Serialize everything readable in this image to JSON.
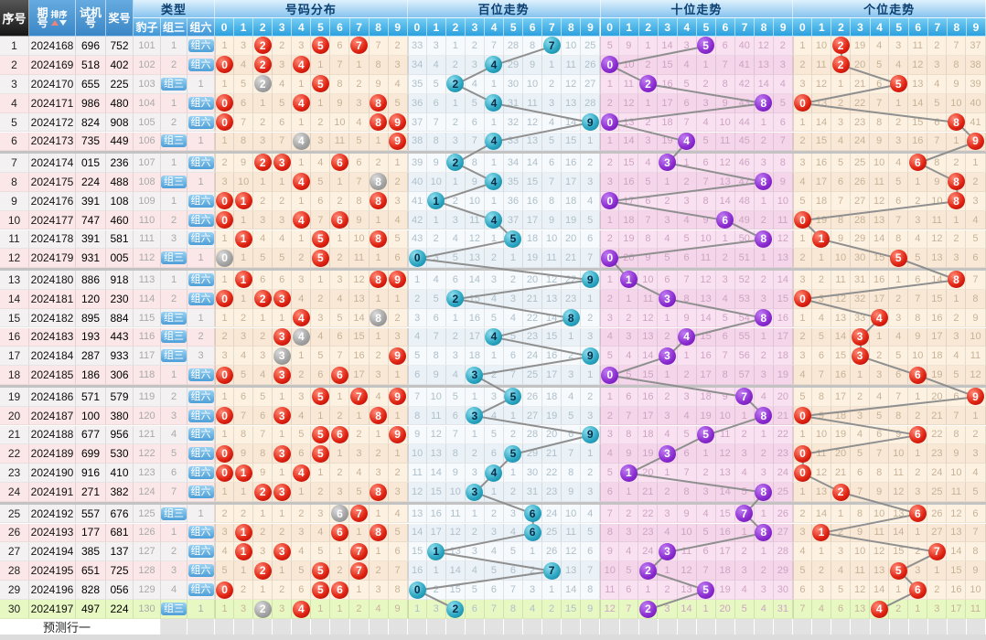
{
  "header": {
    "seq": "序号",
    "period": "期号",
    "sort_label": "排序",
    "test": "试机号",
    "prize": "奖号",
    "type_title": "类型",
    "type_cols": [
      "豹子",
      "组三",
      "组六"
    ],
    "section_titles": [
      "号码分布",
      "百位走势",
      "十位走势",
      "个位走势"
    ],
    "digit_headers": [
      "0",
      "1",
      "2",
      "3",
      "4",
      "5",
      "6",
      "7",
      "8",
      "9"
    ]
  },
  "type_labels": {
    "zu3": "组三",
    "zu6": "组六"
  },
  "seeds": {
    "distribution": [
      1,
      3,
      0,
      2,
      3,
      0,
      6,
      0,
      7,
      2
    ],
    "hundreds": [
      33,
      3,
      1,
      2,
      7,
      28,
      8,
      0,
      10,
      25
    ],
    "tens": [
      5,
      9,
      1,
      14,
      3,
      0,
      6,
      40,
      12,
      2
    ],
    "units": [
      1,
      10,
      0,
      19,
      4,
      3,
      11,
      2,
      7,
      37
    ],
    "baozi_start": 101,
    "zu3_start": 1
  },
  "draws": [
    {
      "period": "2024168",
      "test": "696",
      "prize": "752"
    },
    {
      "period": "2024169",
      "test": "518",
      "prize": "402"
    },
    {
      "period": "2024170",
      "test": "655",
      "prize": "225"
    },
    {
      "period": "2024171",
      "test": "986",
      "prize": "480"
    },
    {
      "period": "2024172",
      "test": "824",
      "prize": "908"
    },
    {
      "period": "2024173",
      "test": "735",
      "prize": "449"
    },
    {
      "period": "2024174",
      "test": "015",
      "prize": "236"
    },
    {
      "period": "2024175",
      "test": "224",
      "prize": "488"
    },
    {
      "period": "2024176",
      "test": "391",
      "prize": "108"
    },
    {
      "period": "2024177",
      "test": "747",
      "prize": "460"
    },
    {
      "period": "2024178",
      "test": "391",
      "prize": "581"
    },
    {
      "period": "2024179",
      "test": "931",
      "prize": "005"
    },
    {
      "period": "2024180",
      "test": "886",
      "prize": "918"
    },
    {
      "period": "2024181",
      "test": "120",
      "prize": "230"
    },
    {
      "period": "2024182",
      "test": "895",
      "prize": "884"
    },
    {
      "period": "2024183",
      "test": "193",
      "prize": "443"
    },
    {
      "period": "2024184",
      "test": "287",
      "prize": "933"
    },
    {
      "period": "2024185",
      "test": "186",
      "prize": "306"
    },
    {
      "period": "2024186",
      "test": "571",
      "prize": "579"
    },
    {
      "period": "2024187",
      "test": "100",
      "prize": "380"
    },
    {
      "period": "2024188",
      "test": "677",
      "prize": "956"
    },
    {
      "period": "2024189",
      "test": "699",
      "prize": "530"
    },
    {
      "period": "2024190",
      "test": "916",
      "prize": "410"
    },
    {
      "period": "2024191",
      "test": "271",
      "prize": "382"
    },
    {
      "period": "2024192",
      "test": "557",
      "prize": "676"
    },
    {
      "period": "2024193",
      "test": "177",
      "prize": "681"
    },
    {
      "period": "2024194",
      "test": "385",
      "prize": "137"
    },
    {
      "period": "2024195",
      "test": "651",
      "prize": "725"
    },
    {
      "period": "2024196",
      "test": "828",
      "prize": "056"
    },
    {
      "period": "2024197",
      "test": "497",
      "prize": "224"
    }
  ],
  "footer": {
    "label": "预测行一"
  },
  "colors": {
    "ball_red": "#d81e06",
    "ball_gray": "#a6a6a6",
    "ball_teal": "#2ba6c2",
    "ball_purple": "#8b2cd0",
    "trend_line": "#8f8f8f",
    "header_blue": "#3e95d6",
    "latest_row_green": "#e7f8c3"
  }
}
